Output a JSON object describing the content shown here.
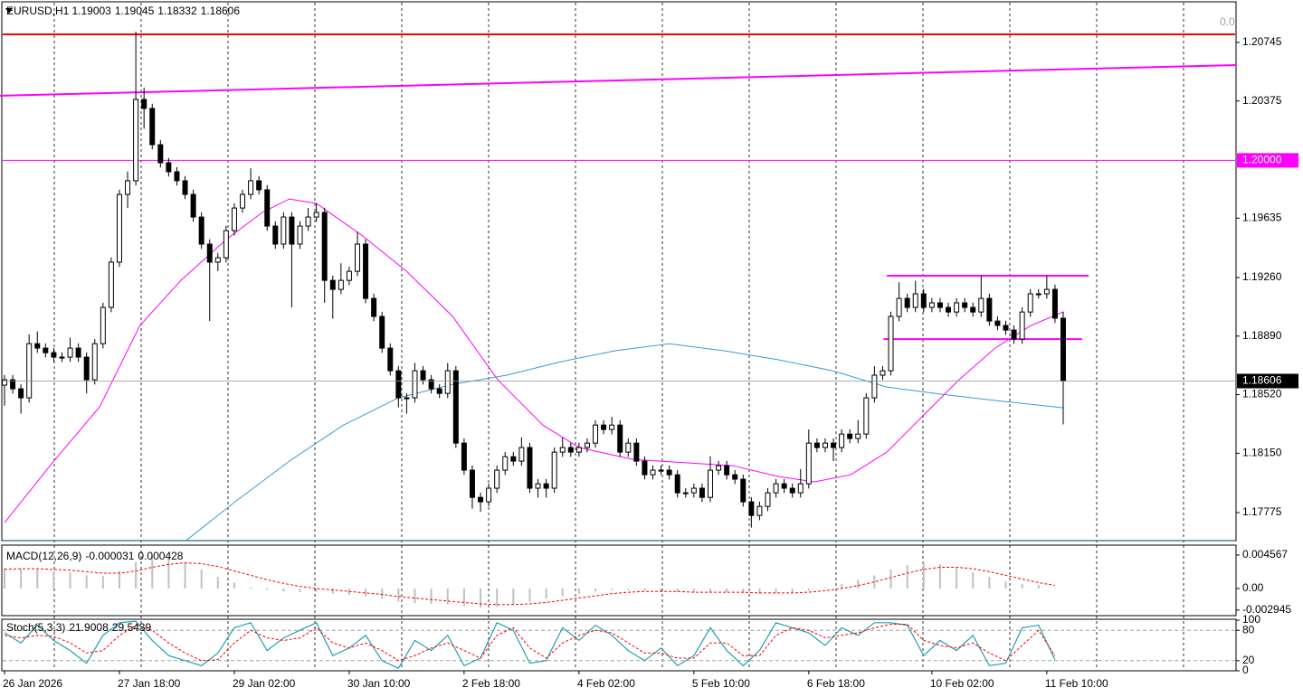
{
  "chart_data": [
    {
      "type": "candlestick",
      "title": "EURUSD,H1",
      "corner_label": "0.0",
      "open": [
        1.1858,
        1.18614,
        1.18557,
        1.185,
        1.18842,
        1.18814,
        1.18785,
        1.18757,
        1.18757,
        1.18814,
        1.18757,
        1.18614,
        1.18842,
        1.19071,
        1.19357,
        1.19785,
        1.19871,
        1.20385,
        1.20328,
        1.20099,
        1.19985,
        1.19928,
        1.19871,
        1.19785,
        1.19642,
        1.19471,
        1.19357,
        1.19385,
        1.19556,
        1.19699,
        1.19785,
        1.19871,
        1.19814,
        1.19585,
        1.19471,
        1.19642,
        1.19471,
        1.19585,
        1.19642,
        1.19671,
        1.19242,
        1.19185,
        1.19242,
        1.19299,
        1.19471,
        1.19128,
        1.19014,
        1.18814,
        1.18671,
        1.185,
        1.185,
        1.18671,
        1.18614,
        1.18557,
        1.18528,
        1.18671,
        1.18214,
        1.18043,
        1.17871,
        1.17843,
        1.17929,
        1.18043,
        1.18128,
        1.181,
        1.18186,
        1.17929,
        1.17957,
        1.17929,
        1.18157,
        1.18186,
        1.18157,
        1.18186,
        1.18214,
        1.18328,
        1.183,
        1.18328,
        1.18157,
        1.18214,
        1.181,
        1.18014,
        1.18043,
        1.18043,
        1.18014,
        1.179,
        1.179,
        1.17929,
        1.17871,
        1.18043,
        1.18071,
        1.18014,
        1.17986,
        1.17843,
        1.17757,
        1.17814,
        1.179,
        1.17957,
        1.17929,
        1.179,
        1.17957,
        1.18214,
        1.18186,
        1.18214,
        1.18186,
        1.18271,
        1.18243,
        1.18271,
        1.185,
        1.18643,
        1.18671,
        1.19014,
        1.19128,
        1.19071,
        1.19157,
        1.19071,
        1.191,
        1.19071,
        1.19042,
        1.191,
        1.19071,
        1.19042,
        1.19128,
        1.18985,
        1.18957,
        1.18928,
        1.18871,
        1.19042,
        1.19157,
        1.19157,
        1.19185,
        1.19003
      ],
      "high": [
        1.18644,
        1.18644,
        1.18587,
        1.189,
        1.1892,
        1.18844,
        1.18815,
        1.18787,
        1.1888,
        1.18844,
        1.18787,
        1.18872,
        1.19101,
        1.19387,
        1.19815,
        1.1993,
        1.20813,
        1.2046,
        1.20358,
        1.20129,
        1.20015,
        1.19958,
        1.19901,
        1.19815,
        1.19672,
        1.19501,
        1.19415,
        1.19586,
        1.19729,
        1.19815,
        1.1995,
        1.19901,
        1.19844,
        1.19615,
        1.19672,
        1.19672,
        1.19615,
        1.197,
        1.1973,
        1.19701,
        1.19272,
        1.1935,
        1.19329,
        1.1955,
        1.19501,
        1.19158,
        1.19044,
        1.18844,
        1.18701,
        1.1853,
        1.1872,
        1.18701,
        1.18644,
        1.18587,
        1.1872,
        1.18701,
        1.18244,
        1.18073,
        1.17901,
        1.17959,
        1.18073,
        1.18158,
        1.18158,
        1.1825,
        1.18216,
        1.17987,
        1.17987,
        1.18187,
        1.1825,
        1.18216,
        1.18216,
        1.18244,
        1.18358,
        1.18358,
        1.1838,
        1.18358,
        1.18244,
        1.18244,
        1.1813,
        1.18073,
        1.18073,
        1.18073,
        1.18044,
        1.1793,
        1.17959,
        1.17959,
        1.1813,
        1.18101,
        1.18101,
        1.18044,
        1.18016,
        1.17873,
        1.17844,
        1.1793,
        1.17987,
        1.17987,
        1.17959,
        1.1805,
        1.183,
        1.18244,
        1.18244,
        1.18244,
        1.18301,
        1.18301,
        1.1836,
        1.1853,
        1.187,
        1.18701,
        1.19044,
        1.1923,
        1.19158,
        1.1924,
        1.19187,
        1.1913,
        1.1913,
        1.19101,
        1.1913,
        1.1913,
        1.19101,
        1.19271,
        1.19158,
        1.19015,
        1.18987,
        1.18958,
        1.19072,
        1.19187,
        1.19187,
        1.19271,
        1.19215,
        1.19045
      ],
      "low": [
        1.1845,
        1.18527,
        1.184,
        1.1847,
        1.18784,
        1.18755,
        1.18727,
        1.18727,
        1.18727,
        1.18727,
        1.18528,
        1.18584,
        1.18812,
        1.19041,
        1.19327,
        1.197,
        1.19841,
        1.202,
        1.20069,
        1.19955,
        1.19898,
        1.19841,
        1.19755,
        1.19612,
        1.19441,
        1.18985,
        1.193,
        1.19355,
        1.19526,
        1.19669,
        1.19755,
        1.19784,
        1.19555,
        1.19441,
        1.19441,
        1.19071,
        1.19441,
        1.19555,
        1.19612,
        1.191,
        1.19,
        1.19155,
        1.19212,
        1.19269,
        1.19098,
        1.18984,
        1.18784,
        1.18641,
        1.1844,
        1.184,
        1.1847,
        1.18584,
        1.18527,
        1.18498,
        1.18498,
        1.18184,
        1.18013,
        1.178,
        1.1778,
        1.17813,
        1.17899,
        1.18013,
        1.1807,
        1.1807,
        1.17899,
        1.1787,
        1.1787,
        1.17899,
        1.18127,
        1.18127,
        1.18127,
        1.18156,
        1.18184,
        1.1827,
        1.1827,
        1.18127,
        1.18127,
        1.1807,
        1.17984,
        1.17984,
        1.18013,
        1.17984,
        1.1787,
        1.1787,
        1.1787,
        1.17841,
        1.17841,
        1.18013,
        1.17984,
        1.17956,
        1.17813,
        1.1768,
        1.17727,
        1.17784,
        1.1787,
        1.17899,
        1.1787,
        1.1787,
        1.17927,
        1.18156,
        1.18156,
        1.181,
        1.18156,
        1.18213,
        1.18213,
        1.18241,
        1.1847,
        1.18613,
        1.18641,
        1.18984,
        1.19041,
        1.19041,
        1.19041,
        1.19041,
        1.19041,
        1.19012,
        1.19012,
        1.19041,
        1.19012,
        1.19012,
        1.18955,
        1.18927,
        1.18898,
        1.18841,
        1.18841,
        1.19012,
        1.19127,
        1.19127,
        1.18973,
        1.18332
      ],
      "close": [
        1.18614,
        1.18557,
        1.185,
        1.18842,
        1.18814,
        1.18785,
        1.18757,
        1.18757,
        1.18814,
        1.18757,
        1.18614,
        1.18842,
        1.19071,
        1.19357,
        1.19785,
        1.19871,
        1.20385,
        1.20328,
        1.20099,
        1.19985,
        1.19928,
        1.19871,
        1.19785,
        1.19642,
        1.19471,
        1.19357,
        1.19385,
        1.19556,
        1.19699,
        1.19785,
        1.19871,
        1.19814,
        1.19585,
        1.19471,
        1.19642,
        1.19471,
        1.19585,
        1.19642,
        1.19671,
        1.19242,
        1.19185,
        1.19242,
        1.19299,
        1.19471,
        1.19128,
        1.19014,
        1.18814,
        1.18671,
        1.185,
        1.185,
        1.18671,
        1.18614,
        1.18557,
        1.18528,
        1.18671,
        1.18214,
        1.18043,
        1.17871,
        1.17843,
        1.17929,
        1.18043,
        1.18128,
        1.181,
        1.18186,
        1.17929,
        1.17957,
        1.17929,
        1.18157,
        1.18186,
        1.18157,
        1.18186,
        1.18214,
        1.18328,
        1.183,
        1.18328,
        1.18157,
        1.18214,
        1.181,
        1.18014,
        1.18043,
        1.18043,
        1.18014,
        1.179,
        1.179,
        1.17929,
        1.17871,
        1.18043,
        1.18071,
        1.18014,
        1.17986,
        1.17843,
        1.17757,
        1.17814,
        1.179,
        1.17957,
        1.17929,
        1.179,
        1.17957,
        1.18214,
        1.18186,
        1.18214,
        1.18186,
        1.18271,
        1.18243,
        1.18271,
        1.185,
        1.18643,
        1.18671,
        1.19014,
        1.19128,
        1.19071,
        1.19157,
        1.19071,
        1.191,
        1.19071,
        1.19042,
        1.191,
        1.19071,
        1.19042,
        1.19128,
        1.18985,
        1.18957,
        1.18928,
        1.18871,
        1.19042,
        1.19157,
        1.19157,
        1.19185,
        1.19003,
        1.18606
      ],
      "colors": {
        "up": "#ffffff",
        "down": "#000000",
        "wick": "#000000"
      },
      "series": [
        {
          "color": "#ff00ff",
          "x": [
            0,
            6,
            11.6,
            16.5,
            21.5,
            27,
            31.4,
            34.7,
            38,
            43.5,
            49,
            54.6,
            60.1,
            65.6,
            70,
            76.6,
            83.2,
            88.8,
            94.3,
            98.7,
            103.1,
            107.5,
            111.9,
            116.3,
            120.7,
            125.1,
            129
          ],
          "values": [
            1.17711,
            1.181,
            1.18443,
            1.18957,
            1.19242,
            1.19499,
            1.19671,
            1.19756,
            1.19728,
            1.19528,
            1.19299,
            1.19014,
            1.18614,
            1.18328,
            1.18186,
            1.18111,
            1.18089,
            1.18071,
            1.18003,
            1.17969,
            1.18014,
            1.18157,
            1.18386,
            1.18614,
            1.18814,
            1.18957,
            1.19042
          ]
        },
        {
          "color": "#3a9ad9",
          "x": [
            22.1,
            28.1,
            34.7,
            41.3,
            48,
            54.6,
            61.2,
            67.8,
            74.4,
            81,
            87.7,
            94.3,
            100.9,
            107.5,
            114.1,
            120.7,
            129
          ],
          "values": [
            1.17597,
            1.17843,
            1.181,
            1.18328,
            1.185,
            1.18585,
            1.18643,
            1.18728,
            1.18797,
            1.18842,
            1.18797,
            1.1874,
            1.18671,
            1.18568,
            1.18523,
            1.18483,
            1.18437
          ]
        }
      ],
      "hlines": [
        {
          "value": 1.20796,
          "color": "#ff0000"
        },
        {
          "value": 1.2,
          "label": "1.20000",
          "color": "#ff00ff"
        },
        {
          "value": 1.176,
          "color": "#4aa3c7"
        }
      ],
      "segments": [
        {
          "color": "#ff00ff",
          "x": [
            -0.55,
            150.06
          ],
          "values": [
            1.20408,
            1.20602
          ]
        },
        {
          "color": "#ff00ff",
          "x": [
            107.5,
            132.1
          ],
          "values": [
            1.19271,
            1.19271
          ]
        },
        {
          "color": "#ff00ff",
          "x": [
            107.1,
            131.3
          ],
          "values": [
            1.18871,
            1.18871
          ]
        }
      ],
      "xlim": [
        -0.55,
        150.06
      ],
      "ylim": [
        1.17598,
        1.21013
      ],
      "yticks": [
        1.20745,
        1.20375,
        1.19635,
        {
          "value": 1.1926,
          "label": "1.19260"
        },
        {
          "value": 1.1889,
          "label": "1.18890"
        },
        {
          "value": 1.1852,
          "label": "1.18520"
        },
        {
          "value": 1.1815,
          "label": "1.18150"
        },
        1.17775
      ],
      "xticks": [
        {
          "value": 0,
          "label": "26 Jan 2026"
        },
        {
          "value": 14,
          "label": "27 Jan 18:00"
        },
        {
          "value": 28,
          "label": "29 Jan 02:00"
        },
        {
          "value": 42,
          "label": "30 Jan 10:00"
        },
        {
          "value": 56,
          "label": "2 Feb 18:00"
        },
        {
          "value": 70,
          "label": "4 Feb 02:00"
        },
        {
          "value": 84,
          "label": "5 Feb 10:00"
        },
        {
          "value": 98,
          "label": "6 Feb 18:00"
        },
        {
          "value": 113,
          "label": "10 Feb 02:00"
        },
        {
          "value": 127,
          "label": "11 Feb 10:00"
        }
      ]
    },
    {
      "type": "macd",
      "title": "MACD(12,26,9)",
      "hist_color": "#c0c0c0",
      "signal_color": "#ff0000",
      "x": [
        0,
        2,
        4,
        6,
        8,
        10,
        12,
        14,
        16,
        18,
        20,
        22,
        24,
        26,
        28,
        30,
        32,
        34,
        36,
        38,
        40,
        42,
        44,
        46,
        48,
        50,
        52,
        54,
        56,
        58,
        60,
        62,
        64,
        66,
        68,
        70,
        72,
        74,
        76,
        78,
        80,
        82,
        84,
        86,
        88,
        90,
        92,
        94,
        96,
        98,
        100,
        102,
        104,
        106,
        108,
        110,
        112,
        114,
        116,
        118,
        120,
        122,
        124,
        126,
        128
      ],
      "hist": [
        0.0028,
        0.0027,
        0.0026,
        0.0024,
        0.0022,
        0.0018,
        0.0017,
        0.0024,
        0.0036,
        0.0044,
        0.0042,
        0.0036,
        0.0026,
        0.0016,
        0.0008,
        0.0002,
        -0.0002,
        -0.0004,
        -0.0005,
        -0.0004,
        -0.0007,
        -0.0009,
        -0.0011,
        -0.0014,
        -0.0018,
        -0.002,
        -0.0021,
        -0.0022,
        -0.0024,
        -0.0026,
        -0.0025,
        -0.0022,
        -0.0018,
        -0.0014,
        -0.001,
        -0.0007,
        -0.0004,
        -0.0002,
        -0.0002,
        -0.0003,
        -0.0004,
        -0.0005,
        -0.0005,
        -0.0005,
        -0.0005,
        -0.0006,
        -0.0007,
        -0.0006,
        -0.0005,
        -0.0003,
        0.0001,
        0.0006,
        0.0012,
        0.0018,
        0.0026,
        0.0032,
        0.0035,
        0.0033,
        0.0028,
        0.0022,
        0.0016,
        0.001,
        0.0006,
        0.0005,
        -3.1e-05
      ],
      "signal": [
        0.0026,
        0.0027,
        0.0027,
        0.0026,
        0.0025,
        0.0023,
        0.0021,
        0.0021,
        0.0024,
        0.0029,
        0.0033,
        0.0035,
        0.0034,
        0.003,
        0.0024,
        0.0018,
        0.0012,
        0.0007,
        0.0003,
        0,
        -0.0002,
        -0.0004,
        -0.0006,
        -0.0008,
        -0.0011,
        -0.0013,
        -0.0015,
        -0.0017,
        -0.0019,
        -0.0021,
        -0.0022,
        -0.0022,
        -0.0021,
        -0.0019,
        -0.0016,
        -0.0013,
        -0.001,
        -0.0007,
        -0.0005,
        -0.0004,
        -0.0004,
        -0.0004,
        -0.0005,
        -0.0005,
        -0.0005,
        -0.0005,
        -0.0006,
        -0.0006,
        -0.0006,
        -0.0005,
        -0.0003,
        0,
        0.0004,
        0.0009,
        0.0015,
        0.0021,
        0.0026,
        0.0029,
        0.0029,
        0.0027,
        0.0023,
        0.0018,
        0.0013,
        0.0008,
        0.000428
      ],
      "xlim": [
        -0.55,
        150.06
      ],
      "ylim": [
        -0.003703,
        0.005925
      ],
      "yticks": [
        0.004567,
        {
          "value": 0,
          "label": "0.00"
        },
        -0.002945
      ]
    },
    {
      "type": "stoch",
      "title": "Stoch(5,3,3)",
      "main_color": "#20a0b0",
      "signal_color": "#ff0000",
      "x": [
        0,
        2,
        4,
        6,
        8,
        10,
        12,
        14,
        16,
        18,
        20,
        22,
        24,
        26,
        28,
        30,
        32,
        34,
        36,
        38,
        40,
        42,
        44,
        46,
        48,
        50,
        52,
        54,
        56,
        58,
        60,
        62,
        64,
        66,
        68,
        70,
        72,
        74,
        76,
        78,
        80,
        82,
        84,
        86,
        88,
        90,
        92,
        94,
        96,
        98,
        100,
        102,
        104,
        106,
        108,
        110,
        112,
        114,
        116,
        118,
        120,
        122,
        124,
        126,
        128
      ],
      "main": [
        75,
        55,
        90,
        60,
        40,
        15,
        70,
        95,
        98,
        60,
        30,
        20,
        10,
        35,
        85,
        95,
        40,
        65,
        80,
        95,
        30,
        45,
        70,
        20,
        5,
        60,
        40,
        70,
        10,
        25,
        95,
        80,
        15,
        20,
        85,
        60,
        90,
        70,
        40,
        20,
        45,
        10,
        30,
        85,
        40,
        10,
        40,
        95,
        85,
        75,
        50,
        85,
        70,
        95,
        95,
        90,
        30,
        60,
        40,
        70,
        10,
        15,
        85,
        90,
        21.9008
      ],
      "signal": [
        70,
        65,
        70,
        68,
        55,
        35,
        40,
        70,
        90,
        80,
        55,
        35,
        20,
        22,
        55,
        80,
        65,
        60,
        65,
        85,
        55,
        45,
        55,
        40,
        20,
        30,
        45,
        55,
        40,
        25,
        70,
        85,
        45,
        25,
        55,
        70,
        80,
        75,
        55,
        35,
        35,
        25,
        25,
        55,
        55,
        30,
        30,
        70,
        85,
        80,
        65,
        70,
        75,
        85,
        92,
        92,
        60,
        50,
        45,
        55,
        35,
        20,
        50,
        80,
        29.5439
      ],
      "xlim": [
        -0.55,
        150.06
      ],
      "ylim": [
        0,
        100
      ],
      "yticks": [
        100,
        80,
        20,
        0
      ]
    }
  ]
}
